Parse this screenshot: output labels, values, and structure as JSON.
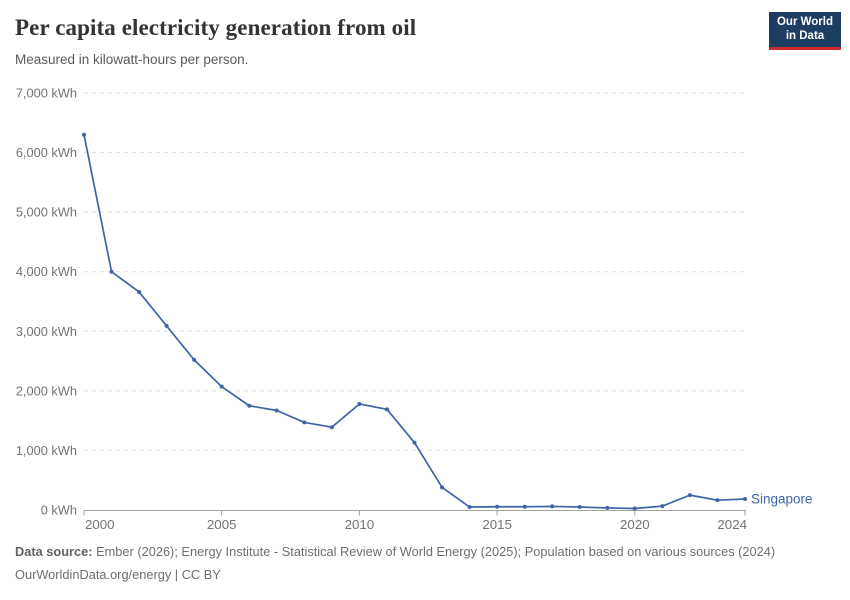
{
  "header": {
    "title": "Per capita electricity generation from oil",
    "subtitle": "Measured in kilowatt-hours per person.",
    "logo": {
      "line1": "Our World",
      "line2": "in Data"
    }
  },
  "chart_data": {
    "type": "line",
    "title": "Per capita electricity generation from oil",
    "subtitle": "Measured in kilowatt-hours per person.",
    "xlabel": "",
    "ylabel": "kWh per person",
    "xlim": [
      2000,
      2024
    ],
    "ylim": [
      0,
      7000
    ],
    "grid": "horizontal-dashed",
    "legend_position": "end-of-line",
    "x": [
      2000,
      2001,
      2002,
      2003,
      2004,
      2005,
      2006,
      2007,
      2008,
      2009,
      2010,
      2011,
      2012,
      2013,
      2014,
      2015,
      2016,
      2017,
      2018,
      2019,
      2020,
      2021,
      2022,
      2023,
      2024
    ],
    "series": [
      {
        "name": "Singapore",
        "color": "#3d64a5",
        "values": [
          6300,
          4000,
          3660,
          3090,
          2520,
          2070,
          1750,
          1670,
          1470,
          1390,
          1780,
          1690,
          1130,
          380,
          50,
          55,
          55,
          60,
          50,
          35,
          25,
          65,
          250,
          165,
          185
        ]
      }
    ],
    "yticks": [
      {
        "value": 0,
        "label": "0 kWh"
      },
      {
        "value": 1000,
        "label": "1,000 kWh"
      },
      {
        "value": 2000,
        "label": "2,000 kWh"
      },
      {
        "value": 3000,
        "label": "3,000 kWh"
      },
      {
        "value": 4000,
        "label": "4,000 kWh"
      },
      {
        "value": 5000,
        "label": "5,000 kWh"
      },
      {
        "value": 6000,
        "label": "6,000 kWh"
      },
      {
        "value": 7000,
        "label": "7,000 kWh"
      }
    ],
    "xticks": [
      {
        "value": 2000,
        "label": "2000",
        "align": "start"
      },
      {
        "value": 2005,
        "label": "2005",
        "align": "middle"
      },
      {
        "value": 2010,
        "label": "2010",
        "align": "middle"
      },
      {
        "value": 2015,
        "label": "2015",
        "align": "middle"
      },
      {
        "value": 2020,
        "label": "2020",
        "align": "middle"
      },
      {
        "value": 2024,
        "label": "2024",
        "align": "end"
      }
    ]
  },
  "footer": {
    "datasource_label": "Data source:",
    "datasource_text": " Ember (2026); Energy Institute - Statistical Review of World Energy (2025); Population based on various sources (2024)",
    "url": "OurWorldinData.org/energy",
    "separator": " | ",
    "license": "CC BY"
  },
  "colors": {
    "line": "#3d64a5",
    "grid": "#dedede",
    "axis": "#a3a3a3",
    "tick_text": "#737373",
    "series_label": "#3d64a5"
  }
}
